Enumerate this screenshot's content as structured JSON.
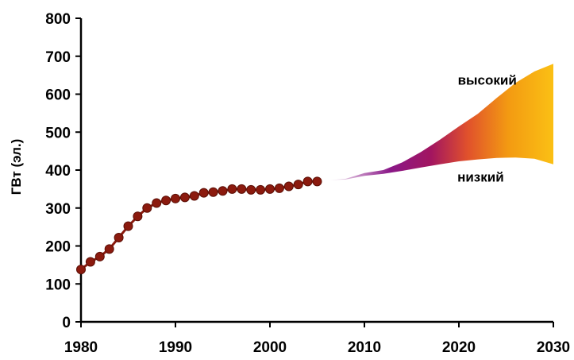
{
  "chart_data": {
    "type": "line",
    "title": "",
    "xlabel": "",
    "ylabel": "ГВт (эл.)",
    "xlim": [
      1980,
      2030
    ],
    "ylim": [
      0,
      800
    ],
    "x_ticks": [
      "1980",
      "1990",
      "2000",
      "2010",
      "2020",
      "2030"
    ],
    "y_ticks": [
      "0",
      "100",
      "200",
      "300",
      "400",
      "500",
      "600",
      "700",
      "800"
    ],
    "grid": false,
    "series": [
      {
        "marker": "circle",
        "color": "#8b1a0e",
        "x": [
          1980,
          1981,
          1982,
          1983,
          1984,
          1985,
          1986,
          1987,
          1988,
          1989,
          1990,
          1991,
          1992,
          1993,
          1994,
          1995,
          1996,
          1997,
          1998,
          1999,
          2000,
          2001,
          2002,
          2003,
          2004,
          2005
        ],
        "y": [
          138,
          158,
          172,
          192,
          222,
          252,
          278,
          300,
          313,
          320,
          325,
          328,
          332,
          340,
          342,
          345,
          350,
          350,
          348,
          348,
          350,
          352,
          357,
          362,
          370,
          370
        ]
      }
    ],
    "projection": {
      "x": [
        2006,
        2008,
        2010,
        2012,
        2014,
        2016,
        2018,
        2020,
        2022,
        2024,
        2026,
        2028,
        2030
      ],
      "high": [
        373,
        377,
        392,
        400,
        420,
        448,
        480,
        515,
        548,
        590,
        630,
        660,
        680
      ],
      "low": [
        373,
        375,
        385,
        390,
        398,
        407,
        415,
        423,
        428,
        432,
        433,
        430,
        415
      ],
      "colors": [
        "#ffffff",
        "#8a1888",
        "#a21560",
        "#e0502c",
        "#f39a12",
        "#fbc014"
      ]
    },
    "annotations": [
      {
        "text": "высокий",
        "x": 2023,
        "y": 625
      },
      {
        "text": "низкий",
        "x": 2022.3,
        "y": 370
      }
    ]
  }
}
